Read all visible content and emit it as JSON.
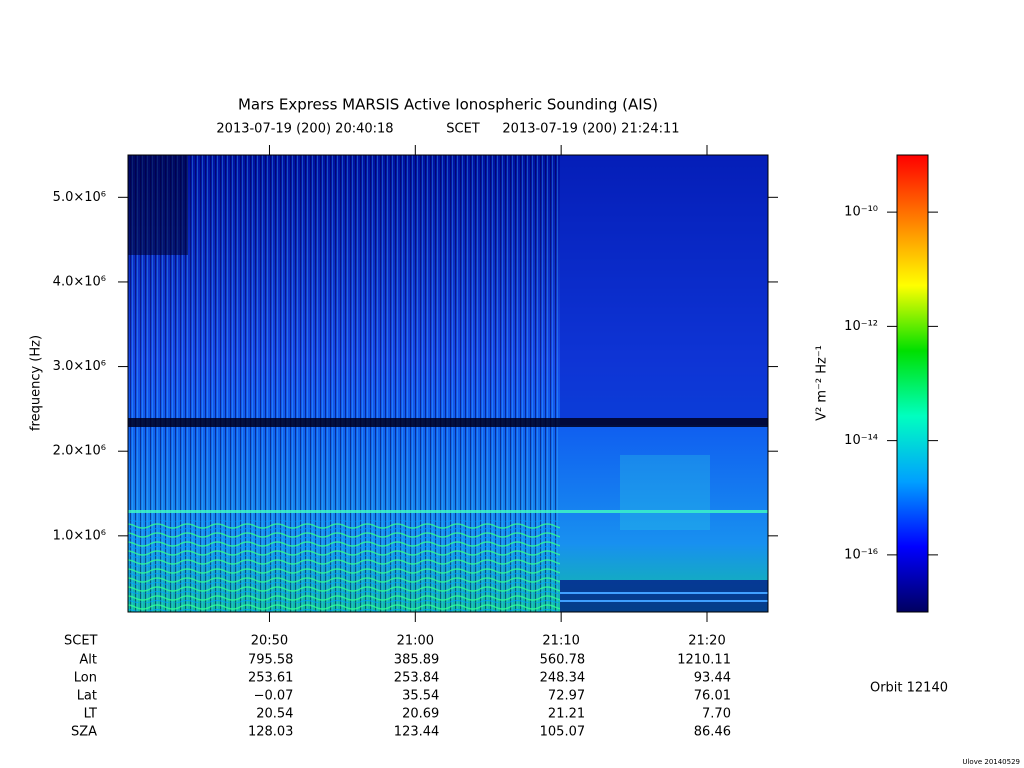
{
  "chart_data": {
    "type": "spectrogram",
    "title": "Mars Express MARSIS Active Ionospheric Sounding (AIS)",
    "subtitle": {
      "start": "2013-07-19 (200) 20:40:18",
      "center": "SCET",
      "end": "2013-07-19 (200) 21:24:11"
    },
    "ylabel": "frequency (Hz)",
    "xlim": [
      1240.3,
      1284.183
    ],
    "xticks": [
      {
        "value": 1250,
        "label": "20:50"
      },
      {
        "value": 1260,
        "label": "21:00"
      },
      {
        "value": 1270,
        "label": "21:10"
      },
      {
        "value": 1280,
        "label": "21:20"
      }
    ],
    "ylim": [
      100000,
      5500000
    ],
    "yticks": [
      {
        "value": 1000000,
        "label": "1.0×10⁶"
      },
      {
        "value": 2000000,
        "label": "2.0×10⁶"
      },
      {
        "value": 3000000,
        "label": "3.0×10⁶"
      },
      {
        "value": 4000000,
        "label": "4.0×10⁶"
      },
      {
        "value": 5000000,
        "label": "5.0×10⁶"
      }
    ],
    "colorbar": {
      "label": "V² m⁻² Hz⁻¹",
      "scale": "log",
      "lim": [
        1e-17,
        1e-09
      ],
      "ticks": [
        {
          "value": 1e-16,
          "label": "10⁻¹⁶"
        },
        {
          "value": 1e-14,
          "label": "10⁻¹⁴"
        },
        {
          "value": 1e-12,
          "label": "10⁻¹²"
        },
        {
          "value": 1e-10,
          "label": "10⁻¹⁰"
        }
      ],
      "colors": [
        "#000060",
        "#0000ff",
        "#00a0ff",
        "#00ffc0",
        "#00e000",
        "#ffff00",
        "#ff8000",
        "#ff0000"
      ]
    }
  },
  "ephemeris": {
    "x_label": "SCET",
    "rows": [
      {
        "name": "Alt",
        "values": [
          "795.58",
          "385.89",
          "560.78",
          "1210.11"
        ]
      },
      {
        "name": "Lon",
        "values": [
          "253.61",
          "253.84",
          "248.34",
          "93.44"
        ]
      },
      {
        "name": "Lat",
        "values": [
          "−0.07",
          "35.54",
          "72.97",
          "76.01"
        ]
      },
      {
        "name": "LT",
        "values": [
          "20.54",
          "20.69",
          "21.21",
          "7.70"
        ]
      },
      {
        "name": "SZA",
        "values": [
          "128.03",
          "123.44",
          "105.07",
          "86.46"
        ]
      }
    ]
  },
  "orbit": "Orbit 12140",
  "credit": "Ulove 20140529"
}
